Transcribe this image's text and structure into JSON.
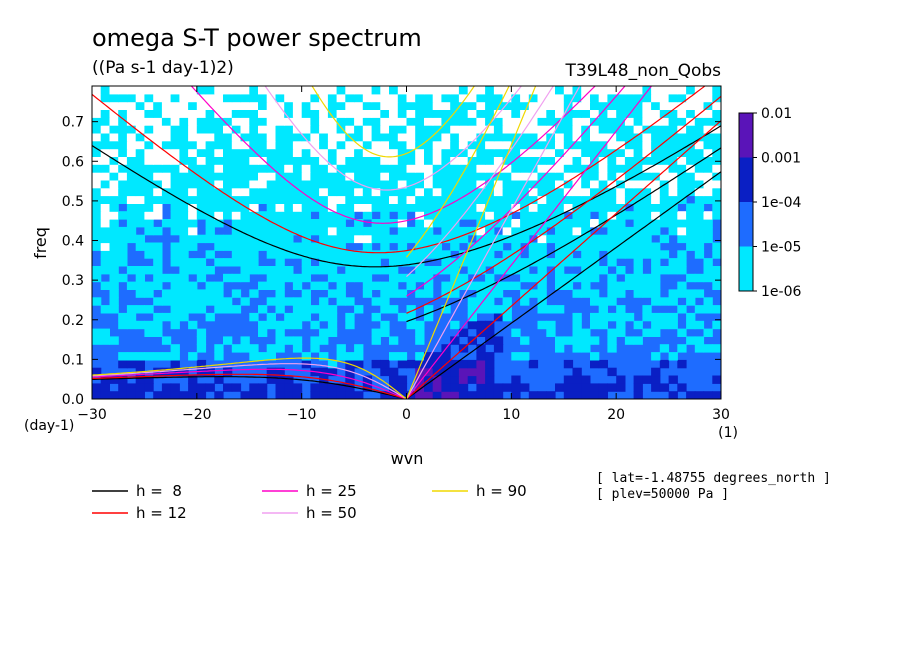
{
  "title": "omega S-T power spectrum",
  "subtitle": "((Pa s-1 day-1)2)",
  "dataset": "T39L48_non_Qobs",
  "notes": [
    "[ lat=-1.48755 degrees_north ]",
    "[ plev=50000 Pa ]"
  ],
  "chart_data": {
    "type": "heatmap",
    "xlabel": "wvn",
    "ylabel": "freq",
    "x_unit": "(1)",
    "y_unit": "(day-1)",
    "xlim": [
      -30,
      30
    ],
    "ylim": [
      0,
      0.79
    ],
    "x_ticks": [
      -30,
      -20,
      -10,
      0,
      10,
      20,
      30
    ],
    "x_tick_labels": [
      "−30",
      "−20",
      "−10",
      "0",
      "10",
      "20",
      "30"
    ],
    "y_ticks": [
      0,
      0.1,
      0.2,
      0.3,
      0.4,
      0.5,
      0.6,
      0.7
    ],
    "y_tick_labels": [
      "0.0",
      "0.1",
      "0.2",
      "0.3",
      "0.4",
      "0.5",
      "0.6",
      "0.7"
    ],
    "color_scale": "log",
    "colorbar": {
      "levels": [
        "1e-06",
        "1e-05",
        "1e-04",
        "0.001",
        "0.01"
      ],
      "colors": [
        "#00e8ff",
        "#1e6cff",
        "#0a1fc4",
        "#5a14b8"
      ]
    },
    "contour_fields": [
      {
        "band": "1e-06 to 1e-05",
        "color": "#00e8ff",
        "regions": "high frequencies (freq > 0.5) and scattered patches"
      },
      {
        "band": "1e-05 to 1e-04",
        "color": "#1e6cff",
        "regions": "most of the domain, freq 0.05 to 0.5"
      },
      {
        "band": "1e-04 to 0.001",
        "color": "#0a1fc4",
        "regions": "low frequencies freq < 0.1 and eastward wavenumbers 2 to 8"
      },
      {
        "band": "white",
        "color": "#ffffff",
        "regions": "small patches below 1e-06, mostly freq > 0.5"
      }
    ],
    "dispersion_curves": {
      "legend": [
        {
          "label": "h =  8",
          "h": 8,
          "color": "#000000"
        },
        {
          "label": "h = 12",
          "h": 12,
          "color": "#ff0000"
        },
        {
          "label": "h = 25",
          "h": 25,
          "color": "#ff00c8"
        },
        {
          "label": "h = 50",
          "h": 50,
          "color": "#f0a0f0"
        },
        {
          "label": "h = 90",
          "h": 90,
          "color": "#f0d800"
        }
      ],
      "families": [
        "Kelvin waves",
        "equatorial Rossby waves",
        "n=1 inertio-gravity waves",
        "mixed Rossby-gravity waves"
      ]
    }
  }
}
